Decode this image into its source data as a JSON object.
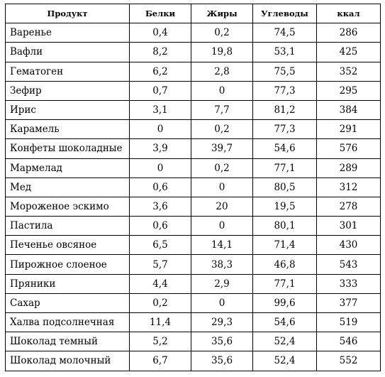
{
  "table": {
    "headers": {
      "product": "Продукт",
      "protein": "Белки",
      "fat": "Жиры",
      "carbs": "Углеводы",
      "kcal": "ккал"
    },
    "rows": [
      {
        "name": "Варенье",
        "protein": "0,4",
        "fat": "0,2",
        "carbs": "74,5",
        "kcal": "286"
      },
      {
        "name": "Вафли",
        "protein": "8,2",
        "fat": "19,8",
        "carbs": "53,1",
        "kcal": "425"
      },
      {
        "name": "Гематоген",
        "protein": "6,2",
        "fat": "2,8",
        "carbs": "75,5",
        "kcal": "352"
      },
      {
        "name": "Зефир",
        "protein": "0,7",
        "fat": "0",
        "carbs": "77,3",
        "kcal": "295"
      },
      {
        "name": "Ирис",
        "protein": "3,1",
        "fat": "7,7",
        "carbs": "81,2",
        "kcal": "384"
      },
      {
        "name": "Карамель",
        "protein": "0",
        "fat": "0,2",
        "carbs": "77,3",
        "kcal": "291"
      },
      {
        "name": "Конфеты шоколадные",
        "protein": "3,9",
        "fat": "39,7",
        "carbs": "54,6",
        "kcal": "576"
      },
      {
        "name": "Мармелад",
        "protein": "0",
        "fat": "0,2",
        "carbs": "77,1",
        "kcal": "289"
      },
      {
        "name": "Мед",
        "protein": "0,6",
        "fat": "0",
        "carbs": "80,5",
        "kcal": "312"
      },
      {
        "name": "Мороженое эскимо",
        "protein": "3,6",
        "fat": "20",
        "carbs": "19,5",
        "kcal": "278"
      },
      {
        "name": "Пастила",
        "protein": "0,6",
        "fat": "0",
        "carbs": "80,1",
        "kcal": "301"
      },
      {
        "name": "Печенье овсяное",
        "protein": "6,5",
        "fat": "14,1",
        "carbs": "71,4",
        "kcal": "430"
      },
      {
        "name": "Пирожное слоеное",
        "protein": "5,7",
        "fat": "38,3",
        "carbs": "46,8",
        "kcal": "543"
      },
      {
        "name": "Пряники",
        "protein": "4,4",
        "fat": "2,9",
        "carbs": "77,1",
        "kcal": "333"
      },
      {
        "name": "Сахар",
        "protein": "0,2",
        "fat": "0",
        "carbs": "99,6",
        "kcal": "377"
      },
      {
        "name": "Халва подсолнечная",
        "protein": "11,4",
        "fat": "29,3",
        "carbs": "54,6",
        "kcal": "519"
      },
      {
        "name": "Шоколад темный",
        "protein": "5,2",
        "fat": "35,6",
        "carbs": "52,4",
        "kcal": "546"
      },
      {
        "name": "Шоколад молочный",
        "protein": "6,7",
        "fat": "35,6",
        "carbs": "52,4",
        "kcal": "552"
      }
    ]
  }
}
